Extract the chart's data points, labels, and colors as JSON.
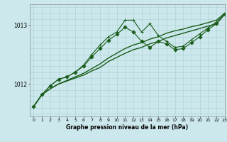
{
  "title": "Graphe pression niveau de la mer (hPa)",
  "background_color": "#cce8ec",
  "grid_color": "#aed4d8",
  "line_color": "#1a5c1a",
  "xlim": [
    -0.5,
    23
  ],
  "ylim": [
    1011.45,
    1013.35
  ],
  "yticks": [
    1012,
    1013
  ],
  "xticks": [
    0,
    1,
    2,
    3,
    4,
    5,
    6,
    7,
    8,
    9,
    10,
    11,
    12,
    13,
    14,
    15,
    16,
    17,
    18,
    19,
    20,
    21,
    22,
    23
  ],
  "series": [
    {
      "x": [
        0,
        1,
        2,
        3,
        4,
        5,
        6,
        7,
        8,
        9,
        10,
        11,
        12,
        13,
        14,
        15,
        16,
        17,
        18,
        19,
        20,
        21,
        22,
        23
      ],
      "y": [
        1011.62,
        1011.82,
        1011.92,
        1012.0,
        1012.05,
        1012.1,
        1012.15,
        1012.22,
        1012.28,
        1012.38,
        1012.45,
        1012.52,
        1012.58,
        1012.62,
        1012.68,
        1012.72,
        1012.78,
        1012.82,
        1012.86,
        1012.9,
        1012.94,
        1012.98,
        1013.02,
        1013.18
      ],
      "marker": null,
      "linewidth": 1.0
    },
    {
      "x": [
        0,
        1,
        2,
        3,
        4,
        5,
        6,
        7,
        8,
        9,
        10,
        11,
        12,
        13,
        14,
        15,
        16,
        17,
        18,
        19,
        20,
        21,
        22,
        23
      ],
      "y": [
        1011.62,
        1011.82,
        1011.92,
        1012.0,
        1012.06,
        1012.12,
        1012.18,
        1012.26,
        1012.34,
        1012.44,
        1012.52,
        1012.6,
        1012.66,
        1012.7,
        1012.76,
        1012.8,
        1012.86,
        1012.9,
        1012.93,
        1012.97,
        1013.0,
        1013.04,
        1013.08,
        1013.2
      ],
      "marker": null,
      "linewidth": 1.0
    },
    {
      "x": [
        0,
        1,
        2,
        3,
        4,
        5,
        6,
        7,
        8,
        9,
        10,
        11,
        12,
        13,
        14,
        15,
        16,
        17,
        18,
        19,
        20,
        21,
        22,
        23
      ],
      "y": [
        1011.62,
        1011.82,
        1011.97,
        1012.08,
        1012.12,
        1012.2,
        1012.32,
        1012.5,
        1012.66,
        1012.8,
        1012.88,
        1013.08,
        1013.08,
        1012.88,
        1013.02,
        1012.82,
        1012.72,
        1012.62,
        1012.64,
        1012.75,
        1012.85,
        1012.95,
        1013.05,
        1013.18
      ],
      "marker": "+",
      "linewidth": 0.8
    },
    {
      "x": [
        0,
        1,
        2,
        3,
        4,
        5,
        6,
        7,
        8,
        9,
        10,
        11,
        12,
        13,
        14,
        15,
        16,
        17,
        18,
        19,
        20,
        21,
        22,
        23
      ],
      "y": [
        1011.62,
        1011.82,
        1011.97,
        1012.08,
        1012.12,
        1012.2,
        1012.3,
        1012.46,
        1012.6,
        1012.74,
        1012.84,
        1012.96,
        1012.88,
        1012.72,
        1012.62,
        1012.72,
        1012.68,
        1012.58,
        1012.6,
        1012.7,
        1012.8,
        1012.92,
        1013.02,
        1013.18
      ],
      "marker": "D",
      "linewidth": 0.8
    }
  ]
}
